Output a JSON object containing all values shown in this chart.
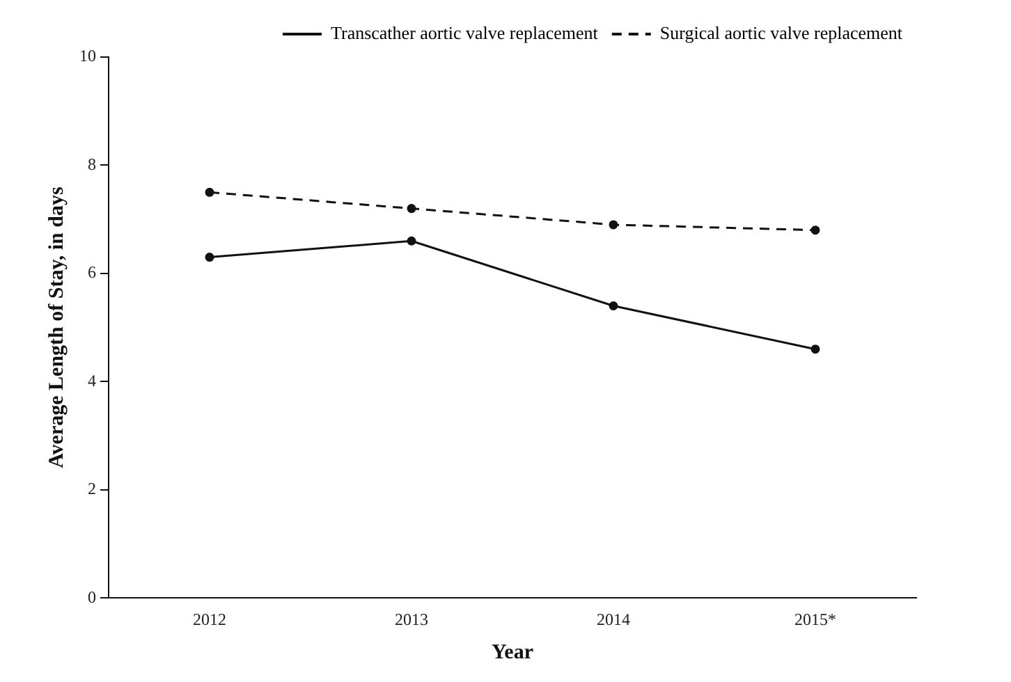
{
  "chart_data": {
    "type": "line",
    "xlabel": "Year",
    "ylabel": "Average Length of Stay, in days",
    "categories": [
      "2012",
      "2013",
      "2014",
      "2015*"
    ],
    "series": [
      {
        "name": "Transcather aortic valve replacement",
        "color": "#111111",
        "values": [
          6.3,
          6.6,
          5.4,
          4.6
        ],
        "line_style": "solid"
      },
      {
        "name": "Surgical aortic valve replacement",
        "color": "#111111",
        "values": [
          7.5,
          7.2,
          6.9,
          6.8
        ],
        "line_style": "dashed"
      }
    ],
    "ylim": [
      0,
      10
    ],
    "yticks": [
      0,
      2,
      4,
      6,
      8,
      10
    ],
    "grid": false,
    "legend": "top right",
    "marker": "circle"
  }
}
